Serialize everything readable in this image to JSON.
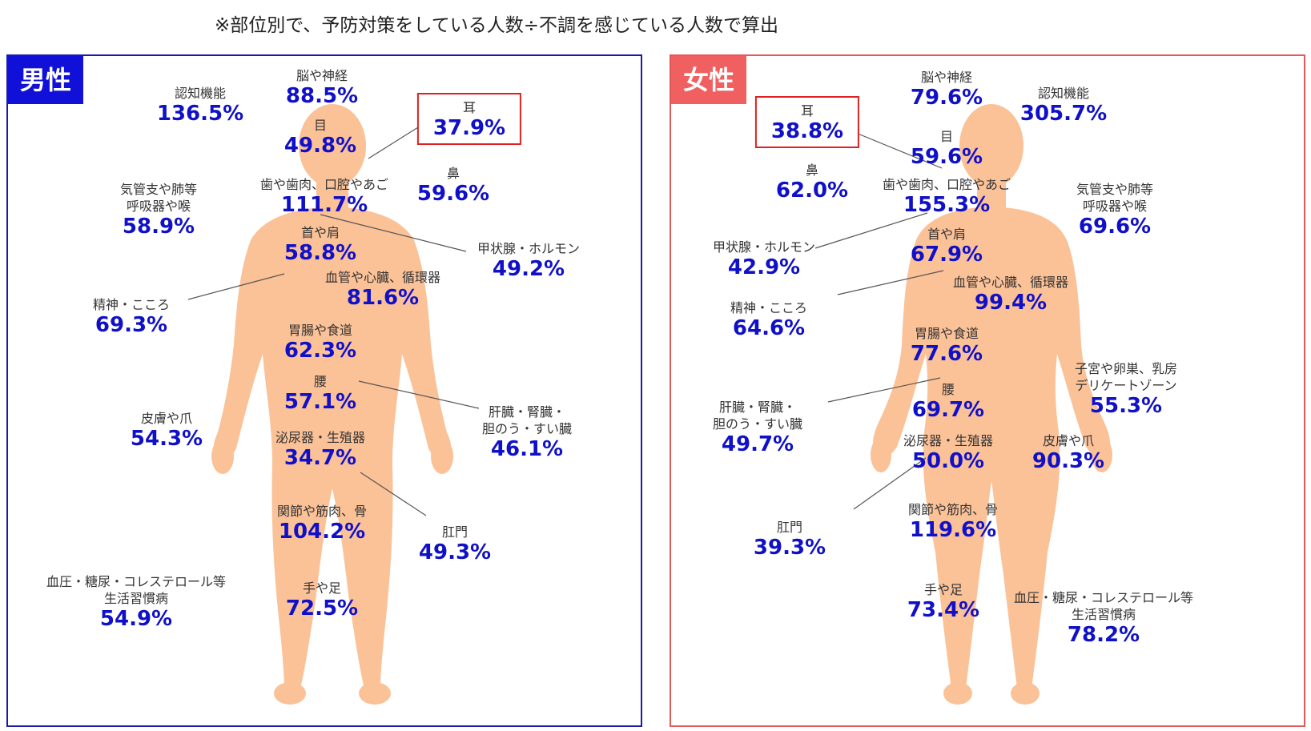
{
  "note": "※部位別で、予防対策をしている人数÷不調を感じている人数で算出",
  "male": {
    "title": "男性",
    "items": [
      {
        "label": "脳や神経",
        "value": "88.5%"
      },
      {
        "label": "認知機能",
        "value": "136.5%"
      },
      {
        "label": "耳",
        "value": "37.9%"
      },
      {
        "label": "目",
        "value": "49.8%"
      },
      {
        "label": "鼻",
        "value": "59.6%"
      },
      {
        "label": "気管支や肺等\n呼吸器や喉",
        "value": "58.9%"
      },
      {
        "label": "歯や歯肉、口腔やあご",
        "value": "111.7%"
      },
      {
        "label": "首や肩",
        "value": "58.8%"
      },
      {
        "label": "甲状腺・ホルモン",
        "value": "49.2%"
      },
      {
        "label": "血管や心臓、循環器",
        "value": "81.6%"
      },
      {
        "label": "精神・こころ",
        "value": "69.3%"
      },
      {
        "label": "胃腸や食道",
        "value": "62.3%"
      },
      {
        "label": "腰",
        "value": "57.1%"
      },
      {
        "label": "肝臓・腎臓・\n胆のう・すい臓",
        "value": "46.1%"
      },
      {
        "label": "皮膚や爪",
        "value": "54.3%"
      },
      {
        "label": "泌尿器・生殖器",
        "value": "34.7%"
      },
      {
        "label": "関節や筋肉、骨",
        "value": "104.2%"
      },
      {
        "label": "肛門",
        "value": "49.3%"
      },
      {
        "label": "血圧・糖尿・コレステロール等\n生活習慣病",
        "value": "54.9%"
      },
      {
        "label": "手や足",
        "value": "72.5%"
      }
    ]
  },
  "female": {
    "title": "女性",
    "items": [
      {
        "label": "脳や神経",
        "value": "79.6%"
      },
      {
        "label": "認知機能",
        "value": "305.7%"
      },
      {
        "label": "耳",
        "value": "38.8%"
      },
      {
        "label": "目",
        "value": "59.6%"
      },
      {
        "label": "鼻",
        "value": "62.0%"
      },
      {
        "label": "歯や歯肉、口腔やあご",
        "value": "155.3%"
      },
      {
        "label": "気管支や肺等\n呼吸器や喉",
        "value": "69.6%"
      },
      {
        "label": "甲状腺・ホルモン",
        "value": "42.9%"
      },
      {
        "label": "首や肩",
        "value": "67.9%"
      },
      {
        "label": "血管や心臓、循環器",
        "value": "99.4%"
      },
      {
        "label": "精神・こころ",
        "value": "64.6%"
      },
      {
        "label": "胃腸や食道",
        "value": "77.6%"
      },
      {
        "label": "子宮や卵巣、乳房\nデリケートゾーン",
        "value": "55.3%"
      },
      {
        "label": "腰",
        "value": "69.7%"
      },
      {
        "label": "肝臓・腎臓・\n胆のう・すい臓",
        "value": "49.7%"
      },
      {
        "label": "泌尿器・生殖器",
        "value": "50.0%"
      },
      {
        "label": "皮膚や爪",
        "value": "90.3%"
      },
      {
        "label": "関節や筋肉、骨",
        "value": "119.6%"
      },
      {
        "label": "肛門",
        "value": "39.3%"
      },
      {
        "label": "手や足",
        "value": "73.4%"
      },
      {
        "label": "血圧・糖尿・コレステロール等\n生活習慣病",
        "value": "78.2%"
      }
    ]
  },
  "colors": {
    "value": "#1010c8",
    "male_accent": "#1010d8",
    "female_accent": "#f06060",
    "body": "#fbc197",
    "highlight": "#e02020"
  }
}
